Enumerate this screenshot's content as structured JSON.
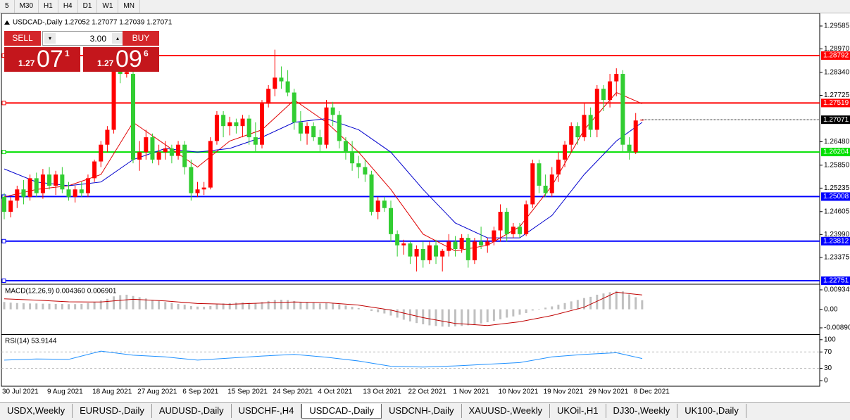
{
  "toolbar": {
    "timeframes": [
      "5",
      "M30",
      "H1",
      "H4",
      "D1",
      "W1",
      "MN"
    ]
  },
  "trade_panel": {
    "sell_label": "SELL",
    "lot": "3.00",
    "buy_label": "BUY",
    "sell_price": {
      "prefix": "1.27",
      "big": "07",
      "sup": "1"
    },
    "buy_price": {
      "prefix": "1.27",
      "big": "09",
      "sup": "6"
    }
  },
  "symbol_header": "USDCAD-,Daily  1.27052 1.27077 1.27039 1.27071",
  "chart_data": [
    {
      "type": "candlestick",
      "categories": [
        "30 Jul 2021",
        null,
        null,
        null,
        null,
        null,
        null,
        "9 Aug 2021",
        null,
        null,
        null,
        null,
        null,
        null,
        "18 Aug 2021",
        null,
        null,
        null,
        null,
        null,
        null,
        "27 Aug 2021",
        null,
        null,
        null,
        null,
        null,
        null,
        "6 Sep 2021",
        null,
        null,
        null,
        null,
        null,
        null,
        "15 Sep 2021",
        null,
        null,
        null,
        null,
        null,
        null,
        "24 Sep 2021",
        null,
        null,
        null,
        null,
        null,
        null,
        "4 Oct 2021",
        null,
        null,
        null,
        null,
        null,
        null,
        "13 Oct 2021",
        null,
        null,
        null,
        null,
        null,
        null,
        "22 Oct 2021",
        null,
        null,
        null,
        null,
        null,
        null,
        "1 Nov 2021",
        null,
        null,
        null,
        null,
        null,
        null,
        "10 Nov 2021",
        null,
        null,
        null,
        null,
        null,
        null,
        "19 Nov 2021",
        null,
        null,
        null,
        null,
        null,
        null,
        "29 Nov 2021",
        null,
        null,
        null,
        null,
        null,
        null,
        "8 Dec 2021",
        null
      ],
      "candles": [
        [
          1.25,
          1.251,
          1.244,
          1.246
        ],
        [
          1.246,
          1.25,
          1.2445,
          1.249
        ],
        [
          1.249,
          1.253,
          1.247,
          1.252
        ],
        [
          1.252,
          1.2545,
          1.248,
          1.25
        ],
        [
          1.25,
          1.256,
          1.249,
          1.255
        ],
        [
          1.255,
          1.2565,
          1.25,
          1.251
        ],
        [
          1.251,
          1.2575,
          1.2495,
          1.256
        ],
        [
          1.256,
          1.258,
          1.252,
          1.253
        ],
        [
          1.253,
          1.257,
          1.2505,
          1.256
        ],
        [
          1.256,
          1.258,
          1.251,
          1.252
        ],
        [
          1.252,
          1.254,
          1.249,
          1.25
        ],
        [
          1.25,
          1.253,
          1.2485,
          1.252
        ],
        [
          1.252,
          1.254,
          1.25,
          1.251
        ],
        [
          1.251,
          1.256,
          1.25,
          1.255
        ],
        [
          1.255,
          1.26,
          1.254,
          1.2595
        ],
        [
          1.2595,
          1.265,
          1.258,
          1.264
        ],
        [
          1.264,
          1.269,
          1.262,
          1.268
        ],
        [
          1.268,
          1.285,
          1.267,
          1.284
        ],
        [
          1.284,
          1.2855,
          1.2805,
          1.283
        ],
        [
          1.283,
          1.285,
          1.282,
          1.2835
        ],
        [
          1.283,
          1.284,
          1.259,
          1.26
        ],
        [
          1.26,
          1.265,
          1.257,
          1.262
        ],
        [
          1.262,
          1.268,
          1.26,
          1.266
        ],
        [
          1.266,
          1.267,
          1.259,
          1.26
        ],
        [
          1.26,
          1.264,
          1.2585,
          1.262
        ],
        [
          1.262,
          1.265,
          1.26,
          1.263
        ],
        [
          1.263,
          1.264,
          1.259,
          1.261
        ],
        [
          1.261,
          1.265,
          1.26,
          1.264
        ],
        [
          1.264,
          1.265,
          1.256,
          1.258
        ],
        [
          1.258,
          1.26,
          1.249,
          1.251
        ],
        [
          1.251,
          1.254,
          1.25,
          1.252
        ],
        [
          1.252,
          1.254,
          1.2505,
          1.2525
        ],
        [
          1.2525,
          1.266,
          1.252,
          1.265
        ],
        [
          1.265,
          1.273,
          1.264,
          1.272
        ],
        [
          1.272,
          1.273,
          1.266,
          1.269
        ],
        [
          1.269,
          1.2715,
          1.2665,
          1.27
        ],
        [
          1.27,
          1.271,
          1.267,
          1.269
        ],
        [
          1.269,
          1.272,
          1.266,
          1.271
        ],
        [
          1.271,
          1.272,
          1.264,
          1.266
        ],
        [
          1.266,
          1.27,
          1.262,
          1.264
        ],
        [
          1.264,
          1.276,
          1.263,
          1.275
        ],
        [
          1.275,
          1.28,
          1.274,
          1.279
        ],
        [
          1.279,
          1.2895,
          1.277,
          1.282
        ],
        [
          1.282,
          1.285,
          1.279,
          1.281
        ],
        [
          1.281,
          1.284,
          1.277,
          1.278
        ],
        [
          1.278,
          1.279,
          1.268,
          1.27
        ],
        [
          1.27,
          1.273,
          1.265,
          1.267
        ],
        [
          1.267,
          1.27,
          1.264,
          1.269
        ],
        [
          1.269,
          1.27,
          1.265,
          1.266
        ],
        [
          1.266,
          1.268,
          1.262,
          1.264
        ],
        [
          1.264,
          1.276,
          1.263,
          1.274
        ],
        [
          1.274,
          1.2755,
          1.269,
          1.272
        ],
        [
          1.272,
          1.273,
          1.263,
          1.265
        ],
        [
          1.265,
          1.266,
          1.26,
          1.262
        ],
        [
          1.262,
          1.265,
          1.257,
          1.259
        ],
        [
          1.259,
          1.261,
          1.255,
          1.258
        ],
        [
          1.258,
          1.26,
          1.254,
          1.256
        ],
        [
          1.256,
          1.257,
          1.245,
          1.246
        ],
        [
          1.246,
          1.25,
          1.244,
          1.249
        ],
        [
          1.249,
          1.25,
          1.246,
          1.247
        ],
        [
          1.247,
          1.249,
          1.238,
          1.24
        ],
        [
          1.24,
          1.241,
          1.234,
          1.237
        ],
        [
          1.237,
          1.2385,
          1.2345,
          1.2375
        ],
        [
          1.2375,
          1.238,
          1.232,
          1.234
        ],
        [
          1.234,
          1.237,
          1.23,
          1.236
        ],
        [
          1.236,
          1.238,
          1.231,
          1.233
        ],
        [
          1.233,
          1.238,
          1.232,
          1.237
        ],
        [
          1.237,
          1.2385,
          1.232,
          1.234
        ],
        [
          1.234,
          1.236,
          1.23,
          1.2355
        ],
        [
          1.2355,
          1.24,
          1.234,
          1.238
        ],
        [
          1.238,
          1.2395,
          1.234,
          1.236
        ],
        [
          1.236,
          1.24,
          1.235,
          1.239
        ],
        [
          1.239,
          1.24,
          1.231,
          1.233
        ],
        [
          1.233,
          1.239,
          1.232,
          1.238
        ],
        [
          1.238,
          1.242,
          1.236,
          1.237
        ],
        [
          1.237,
          1.239,
          1.235,
          1.238
        ],
        [
          1.238,
          1.242,
          1.237,
          1.241
        ],
        [
          1.241,
          1.248,
          1.238,
          1.246
        ],
        [
          1.246,
          1.247,
          1.238,
          1.24
        ],
        [
          1.24,
          1.243,
          1.239,
          1.242
        ],
        [
          1.242,
          1.243,
          1.239,
          1.24
        ],
        [
          1.24,
          1.249,
          1.2395,
          1.248
        ],
        [
          1.248,
          1.26,
          1.247,
          1.259
        ],
        [
          1.259,
          1.26,
          1.251,
          1.253
        ],
        [
          1.253,
          1.256,
          1.25,
          1.251
        ],
        [
          1.251,
          1.258,
          1.25,
          1.256
        ],
        [
          1.256,
          1.262,
          1.254,
          1.26
        ],
        [
          1.26,
          1.265,
          1.258,
          1.264
        ],
        [
          1.264,
          1.27,
          1.262,
          1.269
        ],
        [
          1.269,
          1.27,
          1.264,
          1.266
        ],
        [
          1.266,
          1.275,
          1.265,
          1.272
        ],
        [
          1.272,
          1.274,
          1.266,
          1.268
        ],
        [
          1.268,
          1.28,
          1.266,
          1.279
        ],
        [
          1.279,
          1.28,
          1.273,
          1.276
        ],
        [
          1.276,
          1.283,
          1.274,
          1.281
        ],
        [
          1.281,
          1.2845,
          1.277,
          1.283
        ],
        [
          1.283,
          1.284,
          1.262,
          1.264
        ],
        [
          1.264,
          1.266,
          1.26,
          1.262
        ],
        [
          1.262,
          1.2725,
          1.2615,
          1.2705
        ],
        [
          1.27052,
          1.27077,
          1.27039,
          1.27071
        ]
      ],
      "up_color": "#ff0000",
      "down_color": "#32cd32",
      "series": [
        {
          "color": "#e00000",
          "x": [
            0,
            5,
            10,
            15,
            20,
            25,
            30,
            35,
            40,
            45,
            50,
            55,
            60,
            65,
            70,
            75,
            80,
            85,
            90,
            95,
            99
          ],
          "values": [
            1.25,
            1.252,
            1.253,
            1.256,
            1.27,
            1.264,
            1.258,
            1.265,
            1.268,
            1.276,
            1.27,
            1.262,
            1.252,
            1.24,
            1.2355,
            1.237,
            1.242,
            1.253,
            1.268,
            1.278,
            1.275
          ]
        },
        {
          "color": "#0000cd",
          "x": [
            0,
            5,
            10,
            15,
            20,
            25,
            30,
            35,
            40,
            45,
            50,
            55,
            60,
            65,
            70,
            75,
            80,
            85,
            90,
            95,
            99
          ],
          "values": [
            1.2575,
            1.254,
            1.253,
            1.254,
            1.26,
            1.263,
            1.262,
            1.263,
            1.266,
            1.27,
            1.271,
            1.268,
            1.262,
            1.252,
            1.243,
            1.239,
            1.239,
            1.245,
            1.256,
            1.265,
            1.27
          ]
        }
      ],
      "levels": [
        {
          "value": 1.28792,
          "color": "#ff0000"
        },
        {
          "value": 1.27519,
          "color": "#ff0000"
        },
        {
          "value": 1.26204,
          "color": "#00e000"
        },
        {
          "value": 1.25008,
          "color": "#0000ff"
        },
        {
          "value": 1.23812,
          "color": "#0000ff"
        },
        {
          "value": 1.22751,
          "color": "#0000ff"
        }
      ],
      "current_price": 1.27071,
      "ylim": [
        1.22675,
        1.2983
      ],
      "yticks": [
        1.29585,
        {
          "value": 1.2897,
          "label": "1.28970"
        },
        {
          "value": 1.2834,
          "label": "1.28340"
        },
        1.27725,
        {
          "value": 1.2648,
          "label": "1.26480"
        },
        {
          "value": 1.2585,
          "label": "1.25850"
        },
        1.25235,
        1.24605,
        {
          "value": 1.2399,
          "label": "1.23990"
        },
        1.23375
      ]
    },
    {
      "type": "macd",
      "title": "MACD(12,26,9) 0.004360 0.006901",
      "values": [
        0.0035,
        0.0032,
        0.003,
        0.0029,
        0.0028,
        0.0028,
        0.0027,
        0.0027,
        0.0026,
        0.0026,
        0.0025,
        0.0025,
        0.0026,
        0.003,
        0.0035,
        0.0042,
        0.005,
        0.0062,
        0.0068,
        0.007,
        0.0064,
        0.0058,
        0.0052,
        0.0045,
        0.004,
        0.0035,
        0.003,
        0.0026,
        0.0022,
        0.0016,
        0.0013,
        0.0012,
        0.0016,
        0.0024,
        0.0028,
        0.003,
        0.0032,
        0.0033,
        0.0031,
        0.0029,
        0.0035,
        0.004,
        0.0045,
        0.0046,
        0.0044,
        0.004,
        0.0036,
        0.0034,
        0.0031,
        0.0028,
        0.003,
        0.0029,
        0.0024,
        0.0018,
        0.0012,
        0.0006,
        0.0001,
        -0.0008,
        -0.0014,
        -0.002,
        -0.003,
        -0.004,
        -0.005,
        -0.0058,
        -0.0066,
        -0.0072,
        -0.0077,
        -0.008,
        -0.0083,
        -0.0084,
        -0.0082,
        -0.008,
        -0.0077,
        -0.0074,
        -0.0068,
        -0.0062,
        -0.0056,
        -0.0048,
        -0.004,
        -0.0034,
        -0.0026,
        -0.0018,
        -0.0006,
        0.0002,
        0.0008,
        0.0014,
        0.0022,
        0.003,
        0.0038,
        0.0045,
        0.0054,
        0.006,
        0.007,
        0.0076,
        0.0082,
        0.0088,
        0.0086,
        0.0072,
        0.0058,
        0.00436
      ],
      "color": "#c0c0c0",
      "series": [
        {
          "color": "#c00000",
          "x": [
            0,
            5,
            10,
            15,
            20,
            25,
            30,
            35,
            40,
            45,
            50,
            55,
            60,
            65,
            70,
            75,
            80,
            85,
            90,
            95,
            99
          ],
          "values": [
            0.005,
            0.0044,
            0.0036,
            0.0035,
            0.0048,
            0.004,
            0.0028,
            0.0024,
            0.003,
            0.0035,
            0.0032,
            0.002,
            -0.0004,
            -0.004,
            -0.0068,
            -0.0078,
            -0.006,
            -0.003,
            0.001,
            0.0082,
            0.006901
          ]
        }
      ],
      "ylim": [
        -0.0116,
        0.0117
      ],
      "yticks": [
        0.009345,
        {
          "value": 0,
          "label": "0.00"
        },
        -0.008902
      ]
    },
    {
      "type": "rsi",
      "title": "RSI(14) 53.9144",
      "series": [
        {
          "color": "#1e90ff",
          "x": [
            0,
            5,
            10,
            15,
            20,
            25,
            30,
            35,
            40,
            45,
            50,
            55,
            60,
            65,
            70,
            75,
            80,
            85,
            90,
            95,
            99
          ],
          "values": [
            50,
            53,
            52,
            72,
            62,
            58,
            50,
            55,
            60,
            64,
            57,
            48,
            35,
            33,
            36,
            40,
            44,
            58,
            64,
            68,
            53.9144
          ]
        }
      ],
      "levels": [
        70,
        30
      ],
      "ylim": [
        -12,
        110
      ],
      "yticks": [
        100,
        70,
        30,
        0
      ]
    }
  ],
  "tabs": [
    "USDX,Weekly",
    "EURUSD-,Daily",
    "AUDUSD-,Daily",
    "USDCHF-,H4",
    "USDCAD-,Daily",
    "USDCNH-,Daily",
    "XAUUSD-,Weekly",
    "UKOil-,H1",
    "DJ30-,Weekly",
    "UK100-,Daily"
  ],
  "active_tab": 4
}
